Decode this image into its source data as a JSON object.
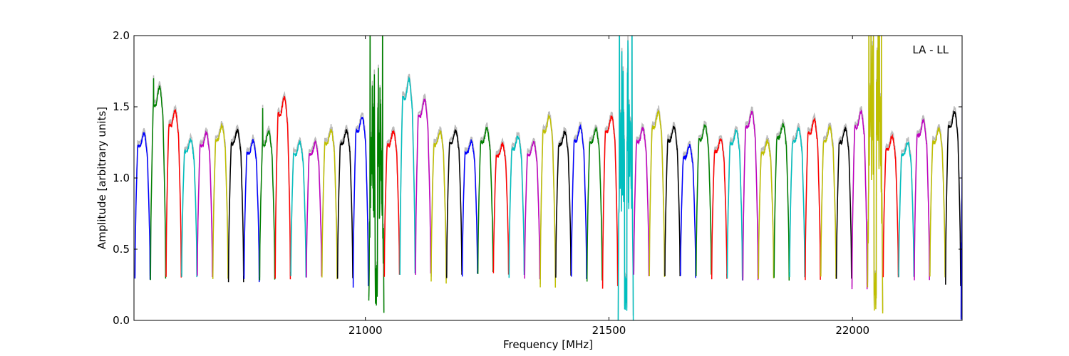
{
  "chart_data": {
    "type": "line",
    "xlabel": "Frequency [MHz]",
    "ylabel": "Amplitude [arbitrary units]",
    "annotation": "LA - LL",
    "annotation_placement": "top-right",
    "xlim": [
      20525,
      22225
    ],
    "ylim": [
      0.0,
      2.0
    ],
    "x_ticks": [
      21000,
      21500,
      22000
    ],
    "x_tick_labels": [
      "21000",
      "21500",
      "22000"
    ],
    "y_ticks": [
      0.0,
      0.5,
      1.0,
      1.5,
      2.0
    ],
    "y_tick_labels": [
      "0.0",
      "0.5",
      "1.0",
      "1.5",
      "2.0"
    ],
    "grid": false,
    "colors": [
      "#0000ff",
      "#008000",
      "#ff0000",
      "#00bfbf",
      "#bf00bf",
      "#bfbf00",
      "#000000"
    ],
    "background_trace_color": "#bbbbbb",
    "channel_width_mhz": 31,
    "channel_spacing_mhz": 32,
    "channels": [
      {
        "x0": 20527,
        "peak": 1.26,
        "base": 0.29,
        "color_index": 0
      },
      {
        "x0": 20559,
        "peak": 1.56,
        "base": 0.29,
        "color_index": 1,
        "spike": 1.7
      },
      {
        "x0": 20591,
        "peak": 1.41,
        "base": 0.31,
        "color_index": 2
      },
      {
        "x0": 20623,
        "peak": 1.22,
        "base": 0.31,
        "color_index": 3
      },
      {
        "x0": 20655,
        "peak": 1.26,
        "base": 0.31,
        "color_index": 4
      },
      {
        "x0": 20687,
        "peak": 1.31,
        "base": 0.3,
        "color_index": 5
      },
      {
        "x0": 20719,
        "peak": 1.28,
        "base": 0.27,
        "color_index": 6
      },
      {
        "x0": 20751,
        "peak": 1.21,
        "base": 0.28,
        "color_index": 0
      },
      {
        "x0": 20783,
        "peak": 1.27,
        "base": 0.29,
        "color_index": 1,
        "spike": 1.49
      },
      {
        "x0": 20815,
        "peak": 1.49,
        "base": 0.3,
        "color_index": 2
      },
      {
        "x0": 20847,
        "peak": 1.2,
        "base": 0.3,
        "color_index": 3
      },
      {
        "x0": 20879,
        "peak": 1.2,
        "base": 0.3,
        "color_index": 4
      },
      {
        "x0": 20911,
        "peak": 1.28,
        "base": 0.29,
        "color_index": 5
      },
      {
        "x0": 20943,
        "peak": 1.28,
        "base": 0.3,
        "color_index": 6
      },
      {
        "x0": 20975,
        "peak": 1.37,
        "base": 0.24,
        "color_index": 0
      },
      {
        "x0": 21007,
        "peak": 1.27,
        "base": 0.1,
        "color_index": 1,
        "noisy": true
      },
      {
        "x0": 21039,
        "peak": 1.27,
        "base": 0.31,
        "color_index": 2
      },
      {
        "x0": 21071,
        "peak": 1.61,
        "base": 0.32,
        "color_index": 3
      },
      {
        "x0": 21103,
        "peak": 1.48,
        "base": 0.32,
        "color_index": 4
      },
      {
        "x0": 21135,
        "peak": 1.27,
        "base": 0.27,
        "color_index": 5
      },
      {
        "x0": 21167,
        "peak": 1.28,
        "base": 0.31,
        "color_index": 6
      },
      {
        "x0": 21199,
        "peak": 1.21,
        "base": 0.32,
        "color_index": 0
      },
      {
        "x0": 21231,
        "peak": 1.29,
        "base": 0.33,
        "color_index": 1
      },
      {
        "x0": 21263,
        "peak": 1.19,
        "base": 0.32,
        "color_index": 2
      },
      {
        "x0": 21295,
        "peak": 1.24,
        "base": 0.31,
        "color_index": 3
      },
      {
        "x0": 21327,
        "peak": 1.2,
        "base": 0.3,
        "color_index": 4
      },
      {
        "x0": 21359,
        "peak": 1.37,
        "base": 0.24,
        "color_index": 5
      },
      {
        "x0": 21391,
        "peak": 1.27,
        "base": 0.31,
        "color_index": 6
      },
      {
        "x0": 21423,
        "peak": 1.3,
        "base": 0.3,
        "color_index": 0
      },
      {
        "x0": 21455,
        "peak": 1.29,
        "base": 0.28,
        "color_index": 1
      },
      {
        "x0": 21487,
        "peak": 1.37,
        "base": 0.23,
        "color_index": 2
      },
      {
        "x0": 21519,
        "peak": 1.36,
        "base": 0.05,
        "color_index": 3,
        "noisy": true
      },
      {
        "x0": 21551,
        "peak": 1.29,
        "base": 0.31,
        "color_index": 4
      },
      {
        "x0": 21583,
        "peak": 1.4,
        "base": 0.3,
        "color_index": 5
      },
      {
        "x0": 21615,
        "peak": 1.3,
        "base": 0.31,
        "color_index": 6
      },
      {
        "x0": 21647,
        "peak": 1.18,
        "base": 0.31,
        "color_index": 0
      },
      {
        "x0": 21679,
        "peak": 1.31,
        "base": 0.31,
        "color_index": 1
      },
      {
        "x0": 21711,
        "peak": 1.22,
        "base": 0.3,
        "color_index": 2
      },
      {
        "x0": 21743,
        "peak": 1.28,
        "base": 0.29,
        "color_index": 3
      },
      {
        "x0": 21775,
        "peak": 1.4,
        "base": 0.29,
        "color_index": 4
      },
      {
        "x0": 21807,
        "peak": 1.21,
        "base": 0.3,
        "color_index": 5
      },
      {
        "x0": 21839,
        "peak": 1.32,
        "base": 0.29,
        "color_index": 1
      },
      {
        "x0": 21871,
        "peak": 1.29,
        "base": 0.3,
        "color_index": 3
      },
      {
        "x0": 21903,
        "peak": 1.35,
        "base": 0.29,
        "color_index": 2
      },
      {
        "x0": 21935,
        "peak": 1.3,
        "base": 0.3,
        "color_index": 5
      },
      {
        "x0": 21967,
        "peak": 1.29,
        "base": 0.29,
        "color_index": 6
      },
      {
        "x0": 21999,
        "peak": 1.4,
        "base": 0.23,
        "color_index": 4
      },
      {
        "x0": 22031,
        "peak": 1.63,
        "base": 0.05,
        "color_index": 5,
        "noisy": true
      },
      {
        "x0": 22063,
        "peak": 1.24,
        "base": 0.3,
        "color_index": 2
      },
      {
        "x0": 22095,
        "peak": 1.2,
        "base": 0.3,
        "color_index": 3
      },
      {
        "x0": 22127,
        "peak": 1.34,
        "base": 0.29,
        "color_index": 4
      },
      {
        "x0": 22159,
        "peak": 1.29,
        "base": 0.3,
        "color_index": 5
      },
      {
        "x0": 22191,
        "peak": 1.4,
        "base": 0.24,
        "color_index": 6
      },
      {
        "x0": 22223,
        "peak": 1.66,
        "base": 0.05,
        "color_index": 0,
        "noisy": true
      }
    ]
  }
}
